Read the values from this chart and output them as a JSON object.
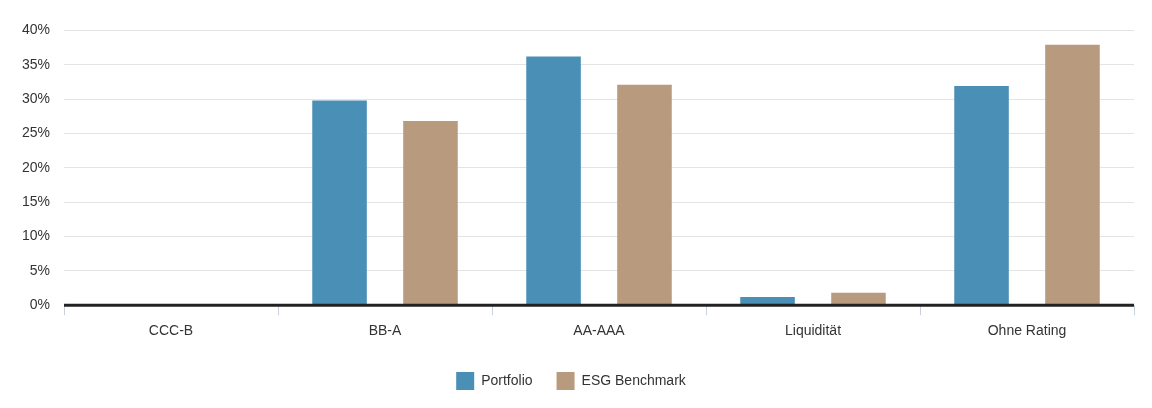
{
  "chart_data": {
    "type": "bar",
    "categories": [
      "CCC-B",
      "BB-A",
      "AA-AAA",
      "Liquidität",
      "Ohne Rating"
    ],
    "series": [
      {
        "name": "Portfolio",
        "color": "#4a8fb5",
        "values": [
          0,
          29.8,
          36.2,
          1.2,
          31.9
        ]
      },
      {
        "name": "ESG Benchmark",
        "color": "#b89b7e",
        "values": [
          0,
          26.8,
          32.1,
          1.8,
          37.9
        ]
      }
    ],
    "ylim": [
      0,
      40
    ],
    "yticks": [
      {
        "value": 0,
        "label": "0%"
      },
      {
        "value": 5,
        "label": "5%"
      },
      {
        "value": 10,
        "label": "10%"
      },
      {
        "value": 15,
        "label": "15%"
      },
      {
        "value": 20,
        "label": "20%"
      },
      {
        "value": 25,
        "label": "25%"
      },
      {
        "value": 30,
        "label": "30%"
      },
      {
        "value": 35,
        "label": "35%"
      },
      {
        "value": 40,
        "label": "40%"
      }
    ],
    "grid": "y",
    "legend": "bottom"
  }
}
